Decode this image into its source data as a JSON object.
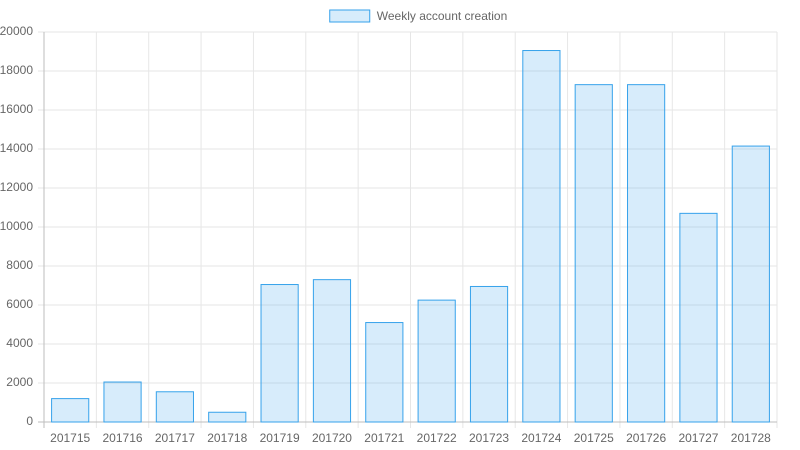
{
  "chart_data": {
    "type": "bar",
    "categories": [
      "201715",
      "201716",
      "201717",
      "201718",
      "201719",
      "201720",
      "201721",
      "201722",
      "201723",
      "201724",
      "201725",
      "201726",
      "201727",
      "201728"
    ],
    "series": [
      {
        "name": "Weekly account creation",
        "color": "#36a2eb",
        "values": [
          1200,
          2050,
          1550,
          500,
          7050,
          7300,
          5100,
          6250,
          6950,
          19050,
          17300,
          17300,
          10700,
          14150
        ]
      }
    ],
    "ylim": [
      0,
      20000
    ],
    "yticks": [
      0,
      2000,
      4000,
      6000,
      8000,
      10000,
      12000,
      14000,
      16000,
      18000,
      20000
    ],
    "grid": true,
    "legend": "top"
  }
}
